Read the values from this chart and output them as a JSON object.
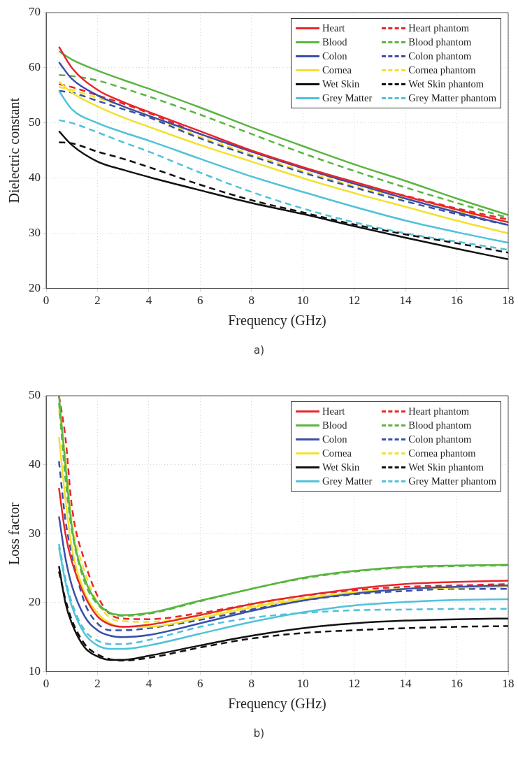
{
  "chart_data": [
    {
      "type": "line",
      "xlabel": "Frequency (GHz)",
      "ylabel": "Dielectric constant",
      "annotations": [
        "a)"
      ],
      "xlim": [
        0,
        18
      ],
      "xticks": [
        0,
        2,
        4,
        6,
        8,
        10,
        12,
        14,
        16,
        18
      ],
      "ylim": [
        20,
        70
      ],
      "yticks": [
        20,
        30,
        40,
        50,
        60,
        70
      ],
      "grid": true,
      "legend": "top right",
      "marker": "none",
      "x": [
        0.5,
        1,
        2,
        3,
        4,
        6,
        8,
        10,
        12,
        14,
        16,
        18
      ],
      "series": [
        {
          "name": "Heart",
          "color": "#e8262b",
          "line_style": "solid",
          "values": [
            63.8,
            60,
            56,
            53.8,
            52,
            48.5,
            45,
            42,
            39.3,
            36.7,
            34.3,
            32
          ]
        },
        {
          "name": "Blood",
          "color": "#5ab540",
          "line_style": "solid",
          "values": [
            63,
            61.5,
            59.5,
            57.8,
            56.2,
            52.8,
            49.2,
            45.8,
            42.5,
            39.5,
            36.3,
            33.3
          ]
        },
        {
          "name": "Colon",
          "color": "#3a4fa8",
          "line_style": "solid",
          "values": [
            61,
            58,
            55,
            53,
            51.3,
            48,
            44.8,
            41.8,
            39,
            36.3,
            33.8,
            31.5
          ]
        },
        {
          "name": "Cornea",
          "color": "#f2e12e",
          "line_style": "solid",
          "values": [
            57.5,
            55.5,
            53,
            51,
            49.3,
            46,
            43,
            40,
            37.3,
            34.8,
            32.3,
            30
          ]
        },
        {
          "name": "Wet Skin",
          "color": "#111111",
          "line_style": "solid",
          "values": [
            48.5,
            46,
            43,
            41.5,
            40.2,
            37.8,
            35.5,
            33.5,
            31.3,
            29.2,
            27.2,
            25.3
          ]
        },
        {
          "name": "Grey Matter",
          "color": "#4fc2d9",
          "line_style": "solid",
          "values": [
            55.8,
            52.5,
            50,
            48.3,
            46.8,
            43.5,
            40.3,
            37.5,
            34.8,
            32.3,
            30.2,
            28.3
          ]
        },
        {
          "name": "Heart phantom",
          "color": "#e8262b",
          "line_style": "dashed",
          "values": [
            57,
            56.5,
            55,
            53.5,
            51.8,
            48,
            44.8,
            41.8,
            39,
            36.8,
            34.5,
            32.5
          ]
        },
        {
          "name": "Blood phantom",
          "color": "#5ab540",
          "line_style": "dashed",
          "values": [
            58.7,
            58.5,
            57.7,
            56.3,
            54.8,
            51.5,
            48,
            44.5,
            41.3,
            38.3,
            35.5,
            32.8
          ]
        },
        {
          "name": "Colon phantom",
          "color": "#3a4fa8",
          "line_style": "dashed",
          "values": [
            55.8,
            55.5,
            54,
            52.5,
            51,
            47.2,
            44,
            41,
            38.3,
            35.8,
            33.5,
            31.5
          ]
        },
        {
          "name": "Cornea phantom",
          "color": "#f2e12e",
          "line_style": "dashed",
          "values": [
            56.5,
            56,
            54.5,
            53,
            51.3,
            47.5,
            44.3,
            41.3,
            38.6,
            36.2,
            34,
            32
          ]
        },
        {
          "name": "Wet Skin phantom",
          "color": "#111111",
          "line_style": "dashed",
          "values": [
            46.5,
            46.3,
            44.8,
            43.5,
            42,
            38.8,
            36,
            33.8,
            31.6,
            29.8,
            28.2,
            26.5
          ]
        },
        {
          "name": "Grey Matter phantom",
          "color": "#4fc2d9",
          "line_style": "dashed",
          "values": [
            50.5,
            50,
            48.3,
            46.5,
            44.8,
            41,
            37.5,
            34.5,
            32,
            30,
            28.5,
            27
          ]
        }
      ]
    },
    {
      "type": "line",
      "xlabel": "Frequency (GHz)",
      "ylabel": "Loss factor",
      "annotations": [
        "b)"
      ],
      "xlim": [
        0,
        18
      ],
      "xticks": [
        0,
        2,
        4,
        6,
        8,
        10,
        12,
        14,
        16,
        18
      ],
      "ylim": [
        10,
        50
      ],
      "yticks": [
        10,
        20,
        30,
        40,
        50
      ],
      "grid": true,
      "legend": "top right",
      "marker": "none",
      "x": [
        0.5,
        0.75,
        1,
        1.5,
        2,
        2.5,
        3,
        4,
        6,
        8,
        10,
        12,
        14,
        16,
        18
      ],
      "series": [
        {
          "name": "Heart",
          "color": "#e8262b",
          "line_style": "solid",
          "values": [
            36.6,
            30,
            26,
            21,
            18,
            16.8,
            16.5,
            16.8,
            18.2,
            19.8,
            21,
            22,
            22.7,
            23,
            23.2
          ]
        },
        {
          "name": "Blood",
          "color": "#5ab540",
          "line_style": "solid",
          "values": [
            50,
            40,
            31,
            23.5,
            20,
            18.5,
            18.2,
            18.5,
            20.3,
            22,
            23.6,
            24.6,
            25.2,
            25.4,
            25.5
          ]
        },
        {
          "name": "Colon",
          "color": "#3a4fa8",
          "line_style": "solid",
          "values": [
            32.5,
            26.5,
            22.5,
            18,
            16,
            15.2,
            15,
            15.3,
            17,
            18.8,
            20.3,
            21.3,
            22,
            22.3,
            22.5
          ]
        },
        {
          "name": "Cornea",
          "color": "#f2e12e",
          "line_style": "solid",
          "values": [
            44,
            35,
            28,
            21.5,
            18.5,
            17,
            16.5,
            16.5,
            17.8,
            19.3,
            20.5,
            21.5,
            22,
            22.2,
            22.3
          ]
        },
        {
          "name": "Wet Skin",
          "color": "#111111",
          "line_style": "solid",
          "values": [
            25.3,
            20,
            17,
            13.5,
            12.2,
            11.7,
            11.7,
            12.3,
            13.8,
            15.2,
            16.3,
            17,
            17.4,
            17.6,
            17.7
          ]
        },
        {
          "name": "Grey Matter",
          "color": "#4fc2d9",
          "line_style": "solid",
          "values": [
            28,
            23,
            19.5,
            15.5,
            13.8,
            13.3,
            13.3,
            13.8,
            15.5,
            17.2,
            18.6,
            19.6,
            20.1,
            20.4,
            20.5
          ]
        },
        {
          "name": "Heart phantom",
          "color": "#e8262b",
          "line_style": "dashed",
          "values": [
            50,
            44,
            34,
            26,
            21,
            18.3,
            17.7,
            17.6,
            18.5,
            19.8,
            21,
            21.8,
            22.3,
            22.5,
            22.7
          ]
        },
        {
          "name": "Blood phantom",
          "color": "#5ab540",
          "line_style": "dashed",
          "values": [
            49,
            38,
            30.5,
            23,
            19.8,
            18.4,
            18.1,
            18.4,
            20.2,
            22,
            23.5,
            24.5,
            25.1,
            25.3,
            25.4
          ]
        },
        {
          "name": "Colon phantom",
          "color": "#3a4fa8",
          "line_style": "dashed",
          "values": [
            40.5,
            32,
            27,
            20,
            17,
            16,
            16,
            16.3,
            17.5,
            19,
            20.3,
            21.2,
            21.7,
            22,
            22
          ]
        },
        {
          "name": "Cornea phantom",
          "color": "#f2e12e",
          "line_style": "dashed",
          "values": [
            48,
            41,
            32,
            24.5,
            20,
            17.8,
            17.3,
            17.2,
            18.2,
            19.5,
            20.7,
            21.5,
            22,
            22.2,
            22.3
          ]
        },
        {
          "name": "Wet Skin phantom",
          "color": "#111111",
          "line_style": "dashed",
          "values": [
            24.5,
            20.5,
            17.5,
            14,
            12.5,
            11.8,
            11.6,
            12,
            13.5,
            14.8,
            15.6,
            16,
            16.3,
            16.5,
            16.6
          ]
        },
        {
          "name": "Grey Matter phantom",
          "color": "#4fc2d9",
          "line_style": "dashed",
          "values": [
            28.5,
            23.5,
            20,
            16,
            14.5,
            14,
            14,
            14.6,
            16.5,
            17.8,
            18.5,
            18.9,
            19,
            19.1,
            19.1
          ]
        }
      ]
    }
  ]
}
